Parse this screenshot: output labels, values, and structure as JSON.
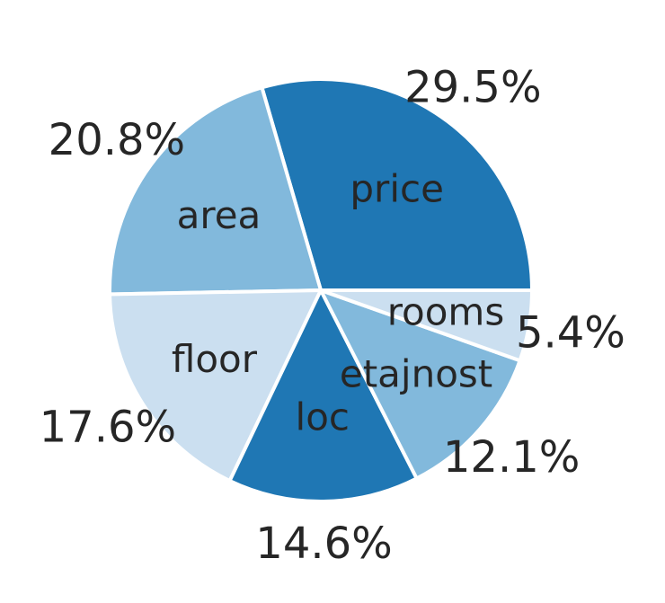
{
  "chart_data": {
    "type": "pie",
    "title": "",
    "start_angle_deg": 0,
    "direction": "counterclockwise",
    "slices": [
      {
        "label": "price",
        "value": 29.5,
        "pct_label": "29.5%",
        "color": "#1f77b4"
      },
      {
        "label": "area",
        "value": 20.8,
        "pct_label": "20.8%",
        "color": "#82b9dc"
      },
      {
        "label": "floor",
        "value": 17.6,
        "pct_label": "17.6%",
        "color": "#cbdff0"
      },
      {
        "label": "loc",
        "value": 14.6,
        "pct_label": "14.6%",
        "color": "#1f77b4"
      },
      {
        "label": "etajnost",
        "value": 12.1,
        "pct_label": "12.1%",
        "color": "#82b9dc"
      },
      {
        "label": "rooms",
        "value": 5.4,
        "pct_label": "5.4%",
        "color": "#cbdff0"
      }
    ]
  }
}
